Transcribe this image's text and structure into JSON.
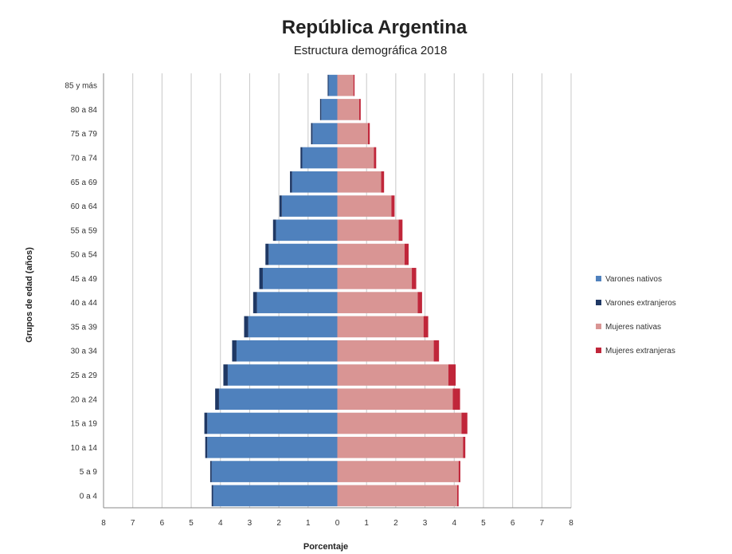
{
  "chart_data": {
    "type": "bar",
    "orientation": "horizontal",
    "title": "República Argentina",
    "subtitle": "Estructura demográfica 2018",
    "xlabel": "Porcentaje",
    "ylabel": "Grupos de edad (años)",
    "xlim": [
      -8,
      8
    ],
    "x_ticks": [
      "8",
      "7",
      "6",
      "5",
      "4",
      "3",
      "2",
      "1",
      "0",
      "1",
      "2",
      "3",
      "4",
      "5",
      "6",
      "7",
      "8"
    ],
    "categories": [
      "0 a 4",
      "5 a 9",
      "10 a 14",
      "15 a 19",
      "20 a 24",
      "25 a 29",
      "30 a 34",
      "35 a 39",
      "40 a 44",
      "45 a 49",
      "50 a 54",
      "55 a 59",
      "60 a 64",
      "65 a 69",
      "70 a 74",
      "75 a 79",
      "80 a 84",
      "85 y más"
    ],
    "series": [
      {
        "name": "Varones nativos",
        "side": "left",
        "color": "#4f81bd",
        "values": [
          4.25,
          4.3,
          4.45,
          4.45,
          4.05,
          3.75,
          3.45,
          3.05,
          2.75,
          2.55,
          2.35,
          2.1,
          1.9,
          1.55,
          1.2,
          0.85,
          0.55,
          0.3
        ]
      },
      {
        "name": "Varones extranjeros",
        "side": "left",
        "color": "#1f3864",
        "values": [
          0.05,
          0.05,
          0.07,
          0.1,
          0.13,
          0.15,
          0.15,
          0.14,
          0.13,
          0.12,
          0.11,
          0.1,
          0.08,
          0.07,
          0.06,
          0.05,
          0.04,
          0.03
        ]
      },
      {
        "name": "Mujeres nativas",
        "side": "right",
        "color": "#d99594",
        "values": [
          4.1,
          4.15,
          4.3,
          4.25,
          3.95,
          3.8,
          3.3,
          2.95,
          2.75,
          2.55,
          2.3,
          2.1,
          1.85,
          1.5,
          1.25,
          1.05,
          0.75,
          0.55
        ]
      },
      {
        "name": "Mujeres extranjeras",
        "side": "right",
        "color": "#c0263a",
        "values": [
          0.05,
          0.06,
          0.08,
          0.2,
          0.25,
          0.25,
          0.18,
          0.16,
          0.15,
          0.15,
          0.14,
          0.13,
          0.11,
          0.1,
          0.08,
          0.06,
          0.05,
          0.04
        ]
      }
    ],
    "grid": true,
    "legend_position": "right"
  }
}
